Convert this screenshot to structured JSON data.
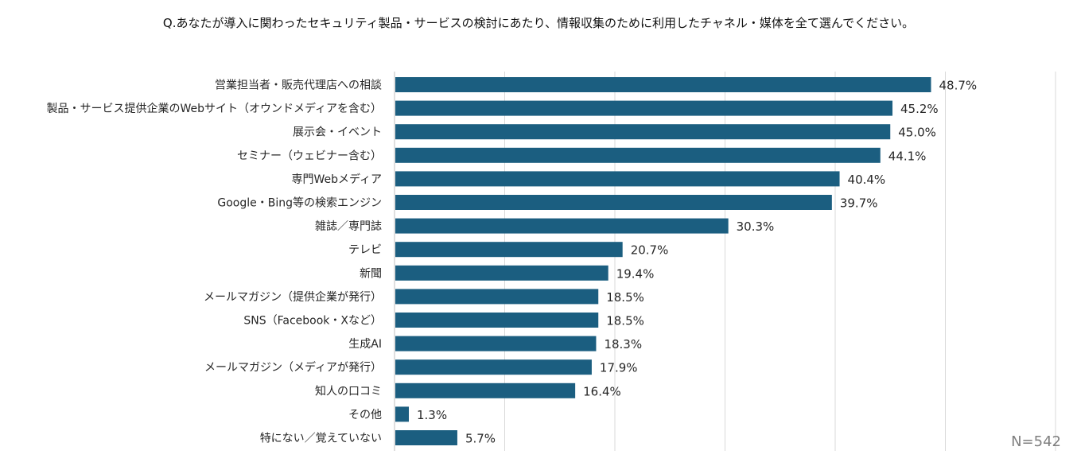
{
  "title": "Q.あなたが導入に関わったセキュリティ製品・サービスの検討にあたり、情報収集のために利用したチャネル・媒体を全て選んでください。",
  "n_label": "N=542",
  "colors": {
    "bar": "#1b5e80",
    "grid": "#d9d9d9",
    "axis": "#bfbfbf"
  },
  "chart_data": {
    "type": "bar",
    "orientation": "horizontal",
    "title": "Q.あなたが導入に関わったセキュリティ製品・サービスの検討にあたり、情報収集のために利用したチャネル・媒体を全て選んでください。",
    "xlabel": "",
    "ylabel": "",
    "xlim": [
      0,
      60
    ],
    "grid": true,
    "categories": [
      "営業担当者・販売代理店への相談",
      "製品・サービス提供企業のWebサイト（オウンドメディアを含む）",
      "展示会・イベント",
      "セミナー（ウェビナー含む）",
      "専門Webメディア",
      "Google・Bing等の検索エンジン",
      "雑誌／専門誌",
      "テレビ",
      "新聞",
      "メールマガジン（提供企業が発行）",
      "SNS（Facebook・Xなど）",
      "生成AI",
      "メールマガジン（メディアが発行）",
      "知人の口コミ",
      "その他",
      "特にない／覚えていない"
    ],
    "values": [
      48.7,
      45.2,
      45.0,
      44.1,
      40.4,
      39.7,
      30.3,
      20.7,
      19.4,
      18.5,
      18.5,
      18.3,
      17.9,
      16.4,
      1.3,
      5.7
    ],
    "value_labels": [
      "48.7%",
      "45.2%",
      "45.0%",
      "44.1%",
      "40.4%",
      "39.7%",
      "30.3%",
      "20.7%",
      "19.4%",
      "18.5%",
      "18.5%",
      "18.3%",
      "17.9%",
      "16.4%",
      "1.3%",
      "5.7%"
    ]
  }
}
